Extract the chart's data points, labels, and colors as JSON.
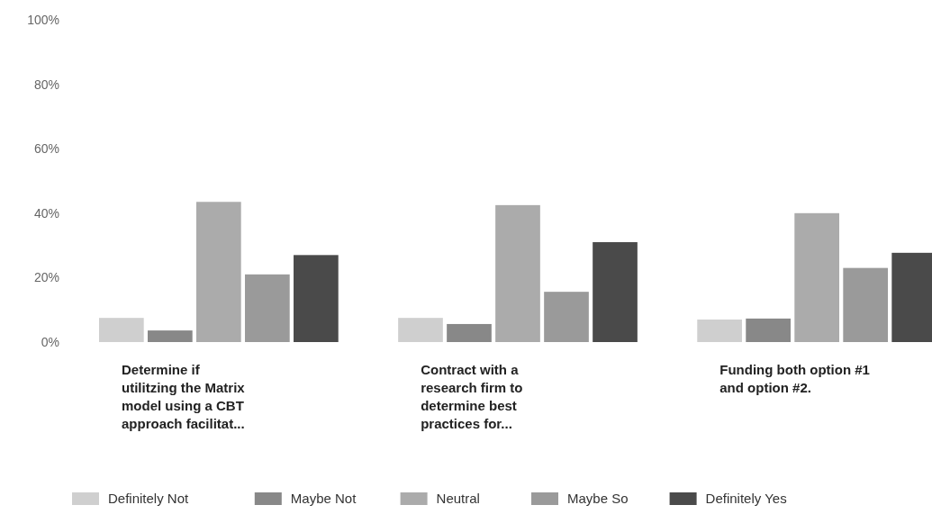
{
  "chart_data": {
    "type": "bar",
    "categories": [
      "Determine if utilitzing the Matrix model using a CBT approach facilitat...",
      "Contract with a research firm to determine best practices for...",
      "Funding both option #1 and option #2."
    ],
    "series": [
      {
        "name": "Definitely Not",
        "color": "#cfcfcf",
        "values": [
          7.5,
          7.5,
          7
        ]
      },
      {
        "name": "Maybe Not",
        "color": "#888888",
        "values": [
          3.6,
          5.6,
          7.3
        ]
      },
      {
        "name": "Neutral",
        "color": "#ababab",
        "values": [
          43.5,
          42.5,
          40
        ]
      },
      {
        "name": "Maybe So",
        "color": "#9a9a9a",
        "values": [
          21,
          15.6,
          23
        ]
      },
      {
        "name": "Definitely Yes",
        "color": "#4a4a4a",
        "values": [
          27,
          31,
          27.7
        ]
      }
    ],
    "ylim": [
      0,
      100
    ],
    "yticks": [
      {
        "value": 0,
        "label": "0%"
      },
      {
        "value": 20,
        "label": "20%"
      },
      {
        "value": 40,
        "label": "40%"
      },
      {
        "value": 60,
        "label": "60%"
      },
      {
        "value": 80,
        "label": "80%"
      },
      {
        "value": 100,
        "label": "100%"
      }
    ],
    "grid": false,
    "legend": "bottom"
  }
}
